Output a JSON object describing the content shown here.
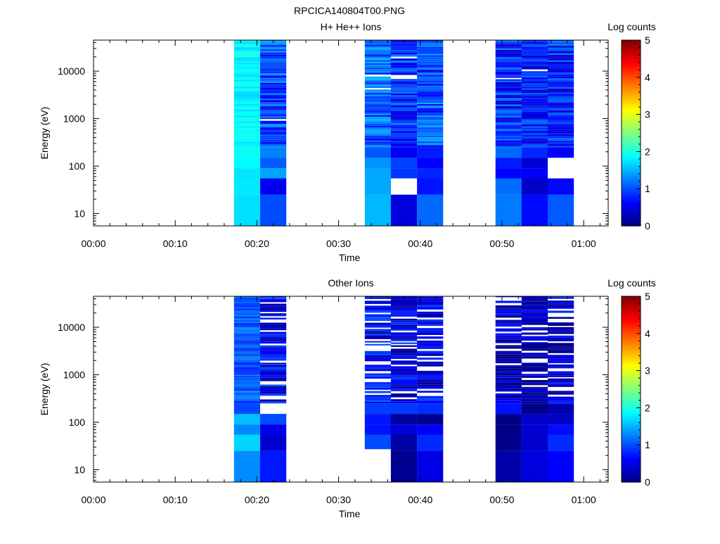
{
  "figure": {
    "title": "RPCICA140804T00.PNG"
  },
  "colorbar": {
    "label": "Log counts",
    "range": [
      0,
      5
    ],
    "ticks": [
      "0",
      "1",
      "2",
      "3",
      "4",
      "5"
    ]
  },
  "chart_data": [
    {
      "type": "heatmap",
      "title": "H+ He++ Ions",
      "xlabel": "Time",
      "ylabel": "Energy (eV)",
      "x_ticks": [
        "00:00",
        "00:10",
        "00:20",
        "00:30",
        "00:40",
        "00:50",
        "01:00"
      ],
      "x_range_min": [
        0,
        63
      ],
      "y_scale": "log",
      "y_range": [
        5.5,
        45000
      ],
      "y_ticks": [
        "10",
        "100",
        "1000",
        "10000"
      ],
      "blocks": [
        {
          "t_start": 17.2,
          "t_end": 20.4,
          "base_log_counts": 2.0,
          "data_above_ev": 5.5
        },
        {
          "t_start": 20.4,
          "t_end": 23.6,
          "base_log_counts": 1.0,
          "data_above_ev": 5.5
        },
        {
          "t_start": 33.2,
          "t_end": 36.4,
          "base_log_counts": 1.1,
          "data_above_ev": 5.5
        },
        {
          "t_start": 36.4,
          "t_end": 39.6,
          "base_log_counts": 0.9,
          "data_above_ev": 5.5
        },
        {
          "t_start": 39.6,
          "t_end": 42.8,
          "base_log_counts": 1.0,
          "data_above_ev": 5.5
        },
        {
          "t_start": 49.2,
          "t_end": 52.4,
          "base_log_counts": 0.8,
          "data_above_ev": 5.5
        },
        {
          "t_start": 52.4,
          "t_end": 55.6,
          "base_log_counts": 0.7,
          "data_above_ev": 5.5
        },
        {
          "t_start": 55.6,
          "t_end": 58.8,
          "base_log_counts": 0.8,
          "data_above_ev": 5.5
        }
      ]
    },
    {
      "type": "heatmap",
      "title": "Other Ions",
      "xlabel": "Time",
      "ylabel": "Energy (eV)",
      "x_ticks": [
        "00:00",
        "00:10",
        "00:20",
        "00:30",
        "00:40",
        "00:50",
        "01:00"
      ],
      "x_range_min": [
        0,
        63
      ],
      "y_scale": "log",
      "y_range": [
        5.5,
        45000
      ],
      "y_ticks": [
        "10",
        "100",
        "1000",
        "10000"
      ],
      "blocks": [
        {
          "t_start": 17.2,
          "t_end": 20.4,
          "base_log_counts": 1.3,
          "data_above_ev": 5.5
        },
        {
          "t_start": 20.4,
          "t_end": 23.6,
          "base_log_counts": 0.6,
          "data_above_ev": 5.5
        },
        {
          "t_start": 33.2,
          "t_end": 36.4,
          "base_log_counts": 0.6,
          "data_above_ev": 27
        },
        {
          "t_start": 36.4,
          "t_end": 39.6,
          "base_log_counts": 0.5,
          "data_above_ev": 5.5
        },
        {
          "t_start": 39.6,
          "t_end": 42.8,
          "base_log_counts": 0.5,
          "data_above_ev": 5.5
        },
        {
          "t_start": 49.2,
          "t_end": 52.4,
          "base_log_counts": 0.3,
          "data_above_ev": 5.5
        },
        {
          "t_start": 52.4,
          "t_end": 55.6,
          "base_log_counts": 0.3,
          "data_above_ev": 5.5
        },
        {
          "t_start": 55.6,
          "t_end": 58.8,
          "base_log_counts": 0.4,
          "data_above_ev": 5.5
        }
      ]
    }
  ]
}
